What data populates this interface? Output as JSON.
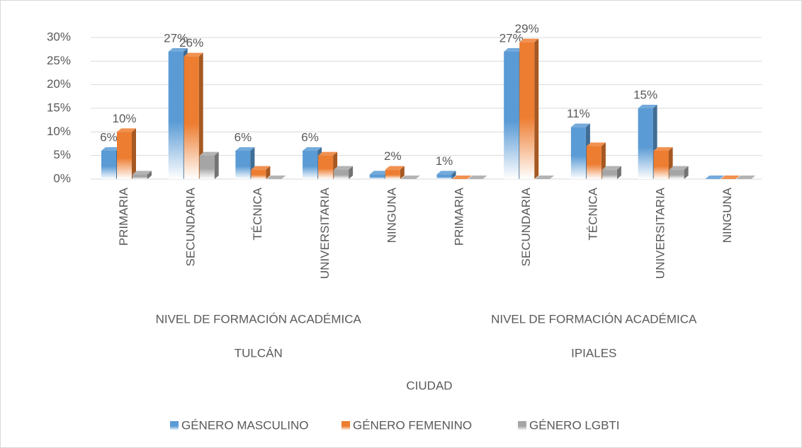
{
  "chart_data": {
    "type": "bar3d",
    "categories": [
      "PRIMARIA",
      "SECUNDARIA",
      "TÉCNICA",
      "UNIVERSITARIA",
      "NINGUNA",
      "PRIMARIA",
      "SECUNDARIA",
      "TÉCNICA",
      "UNIVERSITARIA",
      "NINGUNA"
    ],
    "groups": [
      {
        "level": "NIVEL DE FORMACIÓN ACADÉMICA",
        "city": "TULCÁN"
      },
      {
        "level": "NIVEL DE FORMACIÓN ACADÉMICA",
        "city": "IPIALES"
      }
    ],
    "xlabel": "CIUDAD",
    "series": [
      {
        "name": "GÉNERO MASCULINO",
        "color": "#5b9bd5",
        "values": [
          6,
          27,
          6,
          6,
          1,
          1,
          27,
          11,
          15,
          0
        ],
        "value_labels": [
          "6%",
          "27%",
          "6%",
          "6%",
          null,
          "1%",
          "27%",
          "11%",
          "15%",
          null
        ]
      },
      {
        "name": "GÉNERO FEMENINO",
        "color": "#ed7d31",
        "values": [
          10,
          26,
          2,
          5,
          2,
          0,
          29,
          7,
          6,
          0
        ],
        "value_labels": [
          "10%",
          "26%",
          null,
          null,
          "2%",
          null,
          "29%",
          null,
          null,
          null
        ]
      },
      {
        "name": "GÉNERO LGBTI",
        "color": "#a5a5a5",
        "values": [
          1,
          5,
          0,
          2,
          0,
          0,
          0,
          2,
          2,
          0
        ]
      }
    ],
    "ylim": [
      0,
      30
    ],
    "yticks": [
      {
        "value": 0,
        "label": "0%"
      },
      {
        "value": 5,
        "label": "5%"
      },
      {
        "value": 10,
        "label": "10%"
      },
      {
        "value": 15,
        "label": "15%"
      },
      {
        "value": 20,
        "label": "20%"
      },
      {
        "value": 25,
        "label": "25%"
      },
      {
        "value": 30,
        "label": "30%"
      }
    ],
    "grid": true,
    "legend": "bottom"
  }
}
